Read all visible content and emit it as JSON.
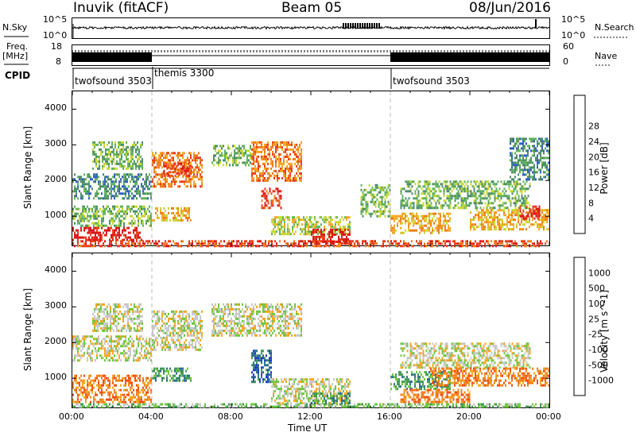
{
  "header": {
    "station": "Inuvik (fitACF)",
    "beam": "Beam 05",
    "date": "08/Jun/2016"
  },
  "nsky": {
    "left_label": "N.Sky",
    "right_label": "N.Search",
    "left_ticks": [
      "10^5",
      "10^0"
    ],
    "right_ticks": [
      "10^5",
      "10^0"
    ]
  },
  "freq": {
    "left_label": "Freq.",
    "unit": "[MHz]",
    "left_ticks": [
      "8",
      "18"
    ],
    "right_label": "Nave",
    "right_ticks": [
      "60",
      "0"
    ]
  },
  "cpid": {
    "label": "CPID",
    "segments": [
      {
        "name": "twofsound 3503",
        "start_h": 0,
        "end_h": 4
      },
      {
        "name": "themis 3300",
        "start_h": 4,
        "end_h": 16
      },
      {
        "name": "twofsound 3503",
        "start_h": 16,
        "end_h": 24
      }
    ]
  },
  "axes": {
    "ylabel": "Slant Range [km]",
    "xlabel": "Time UT",
    "y_ticks": [
      "1000",
      "2000",
      "3000",
      "4000"
    ],
    "x_ticks": [
      "00:00",
      "04:00",
      "08:00",
      "12:00",
      "16:00",
      "20:00",
      "00:00"
    ]
  },
  "chart_data": [
    {
      "type": "heatmap",
      "panel": "power",
      "xlabel": "Time UT",
      "ylabel": "Slant Range [km]",
      "xlim_hours": [
        0,
        24
      ],
      "ylim_km": [
        180,
        4500
      ],
      "colorbar": {
        "label": "Power [dB]",
        "ticks": [
          "4",
          "8",
          "12",
          "16",
          "20",
          "24",
          "28"
        ],
        "colors": [
          "#1c2be0",
          "#2f5fc4",
          "#4d8c6a",
          "#62b35a",
          "#c8d832",
          "#f5a623",
          "#f07d1a",
          "#e8401c",
          "#d91818"
        ]
      },
      "regions": [
        {
          "t0": 0.0,
          "t1": 24.0,
          "r0": 180,
          "r1": 330,
          "level": 7
        },
        {
          "t0": 0.0,
          "t1": 3.5,
          "r0": 330,
          "r1": 700,
          "level": 8
        },
        {
          "t0": 0.0,
          "t1": 4.0,
          "r0": 700,
          "r1": 1300,
          "level": 3
        },
        {
          "t0": 0.0,
          "t1": 4.0,
          "r0": 1500,
          "r1": 2200,
          "level": 2
        },
        {
          "t0": 1.0,
          "t1": 3.5,
          "r0": 2300,
          "r1": 3100,
          "level": 3
        },
        {
          "t0": 4.0,
          "t1": 6.0,
          "r0": 900,
          "r1": 1250,
          "level": 5
        },
        {
          "t0": 4.0,
          "t1": 6.5,
          "r0": 1800,
          "r1": 2800,
          "level": 6
        },
        {
          "t0": 4.5,
          "t1": 6.0,
          "r0": 2100,
          "r1": 2500,
          "level": 7
        },
        {
          "t0": 7.0,
          "t1": 9.0,
          "r0": 2400,
          "r1": 3000,
          "level": 3
        },
        {
          "t0": 9.0,
          "t1": 11.5,
          "r0": 2000,
          "r1": 3100,
          "level": 6
        },
        {
          "t0": 9.5,
          "t1": 10.5,
          "r0": 1200,
          "r1": 1800,
          "level": 7
        },
        {
          "t0": 10.0,
          "t1": 14.0,
          "r0": 500,
          "r1": 1000,
          "level": 4
        },
        {
          "t0": 12.0,
          "t1": 14.0,
          "r0": 300,
          "r1": 650,
          "level": 8
        },
        {
          "t0": 14.5,
          "t1": 16.0,
          "r0": 1000,
          "r1": 1900,
          "level": 3
        },
        {
          "t0": 16.5,
          "t1": 23.0,
          "r0": 1200,
          "r1": 2000,
          "level": 3
        },
        {
          "t0": 16.0,
          "t1": 19.0,
          "r0": 500,
          "r1": 1100,
          "level": 5
        },
        {
          "t0": 20.0,
          "t1": 24.0,
          "r0": 600,
          "r1": 1200,
          "level": 5
        },
        {
          "t0": 22.5,
          "t1": 23.5,
          "r0": 900,
          "r1": 1300,
          "level": 8
        },
        {
          "t0": 22.0,
          "t1": 24.0,
          "r0": 2000,
          "r1": 3200,
          "level": 2
        }
      ]
    },
    {
      "type": "heatmap",
      "panel": "velocity",
      "xlabel": "Time UT",
      "ylabel": "Slant Range [km]",
      "xlim_hours": [
        0,
        24
      ],
      "ylim_km": [
        180,
        4500
      ],
      "colorbar": {
        "label": "Velocity [m s^-1]",
        "ticks": [
          "1000",
          "500",
          "100",
          "25",
          "-25",
          "-100",
          "-500",
          "-1000"
        ],
        "colors": [
          "#1f3dc8",
          "#2f6f8a",
          "#3f9a55",
          "#6fc640",
          "#c8c8c8",
          "#f5a623",
          "#f08020",
          "#ee5010",
          "#e01010"
        ]
      },
      "regions": [
        {
          "t0": 0.0,
          "t1": 24.0,
          "r0": 180,
          "r1": 300,
          "level": 3
        },
        {
          "t0": 0.0,
          "t1": 4.0,
          "r0": 300,
          "r1": 1100,
          "level": 6
        },
        {
          "t0": 0.0,
          "t1": 4.0,
          "r0": 1500,
          "r1": 2200,
          "level": 4
        },
        {
          "t0": 1.0,
          "t1": 3.5,
          "r0": 2300,
          "r1": 3100,
          "level": 4
        },
        {
          "t0": 4.0,
          "t1": 6.5,
          "r0": 1800,
          "r1": 2900,
          "level": 4
        },
        {
          "t0": 4.0,
          "t1": 6.0,
          "r0": 900,
          "r1": 1300,
          "level": 2
        },
        {
          "t0": 7.0,
          "t1": 11.5,
          "r0": 2200,
          "r1": 3100,
          "level": 4
        },
        {
          "t0": 9.0,
          "t1": 10.0,
          "r0": 900,
          "r1": 1800,
          "level": 1
        },
        {
          "t0": 10.0,
          "t1": 14.0,
          "r0": 300,
          "r1": 1000,
          "level": 4
        },
        {
          "t0": 12.0,
          "t1": 14.0,
          "r0": 300,
          "r1": 600,
          "level": 2
        },
        {
          "t0": 16.5,
          "t1": 23.0,
          "r0": 1300,
          "r1": 2000,
          "level": 4
        },
        {
          "t0": 16.0,
          "t1": 19.0,
          "r0": 700,
          "r1": 1200,
          "level": 2
        },
        {
          "t0": 18.0,
          "t1": 24.0,
          "r0": 800,
          "r1": 1300,
          "level": 6
        },
        {
          "t0": 16.5,
          "t1": 20.0,
          "r0": 300,
          "r1": 700,
          "level": 6
        }
      ]
    }
  ]
}
